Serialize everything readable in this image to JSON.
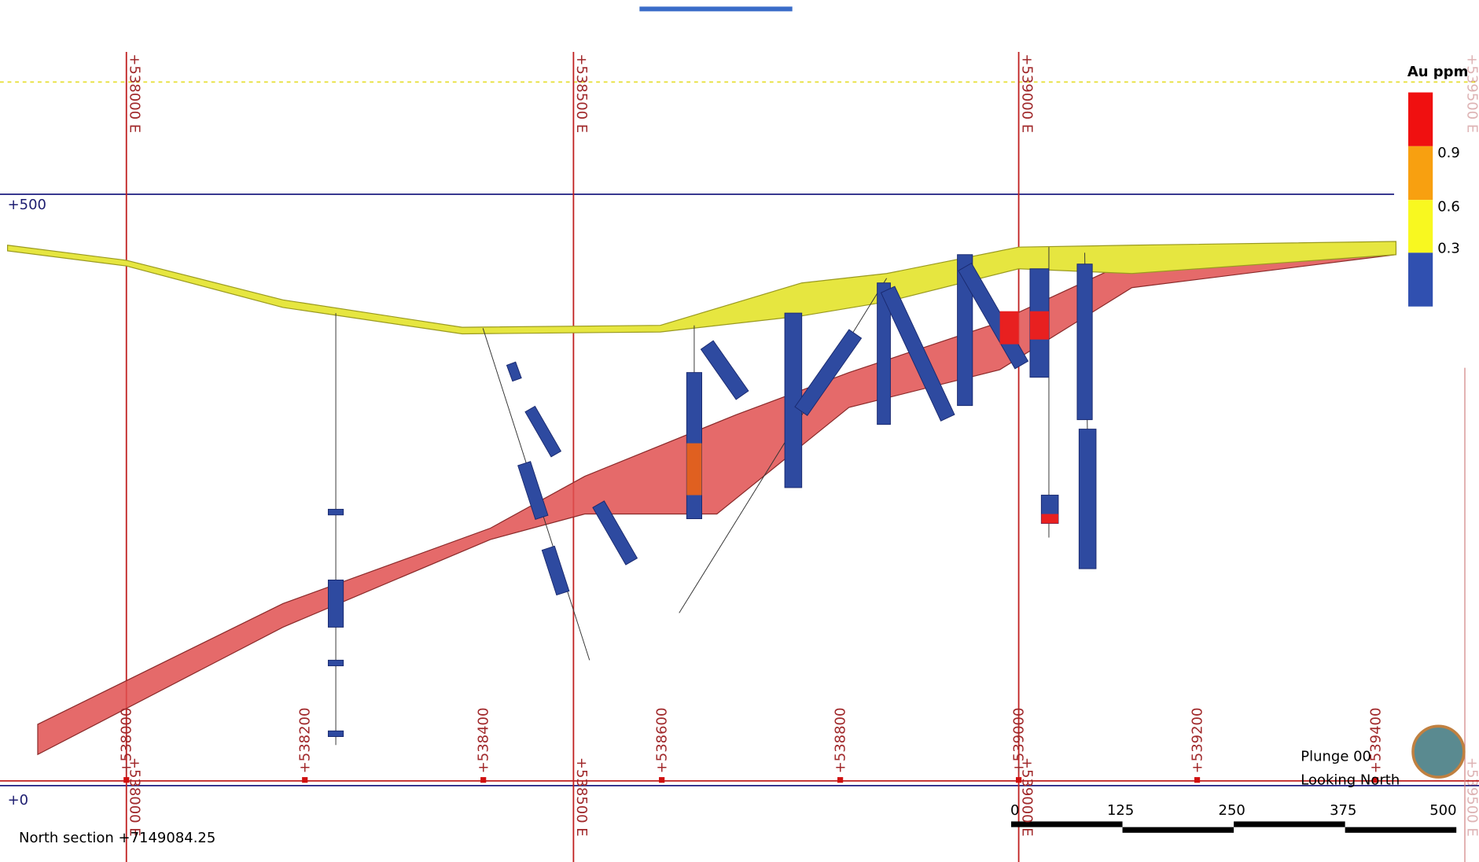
{
  "grid": {
    "eastings_top": [
      "+538000 E",
      "+538500 E",
      "+539000 E",
      "+539500 E"
    ],
    "eastings_bottom": [
      "+538000 E",
      "+538500 E",
      "+539000 E",
      "+539500 E"
    ],
    "elevations": [
      "+500",
      "+0"
    ],
    "ticks": [
      "+538000",
      "+538200",
      "+538400",
      "+538600",
      "+538800",
      "+539000",
      "+539200",
      "+539400"
    ]
  },
  "legend": {
    "title": "Au ppm",
    "labels": [
      "0.9",
      "0.6",
      "0.3"
    ]
  },
  "view": {
    "plunge": "Plunge 00",
    "direction": "Looking North"
  },
  "section": "North section +7149084.25",
  "scale_bar": [
    "0",
    "125",
    "250",
    "375",
    "500"
  ]
}
